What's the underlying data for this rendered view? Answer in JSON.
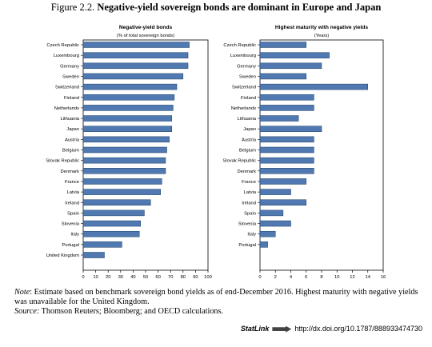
{
  "figure": {
    "label": "Figure 2.2.",
    "title": "Negative-yield sovereign bonds are dominant in Europe and Japan"
  },
  "chart_data": [
    {
      "type": "bar",
      "orientation": "horizontal",
      "title": "Negative-yield bonds",
      "subtitle": "(% of total sovereign bonds)",
      "categories": [
        "Czech Republic",
        "Luxembourg",
        "Germany",
        "Sweden",
        "Switzerland",
        "Finland",
        "Netherlands",
        "Lithuania",
        "Japan",
        "Austria",
        "Belgium",
        "Slovak Republic",
        "Denmark",
        "France",
        "Latvia",
        "Ireland",
        "Spain",
        "Slovenia",
        "Italy",
        "Portugal",
        "United Kingdom"
      ],
      "values": [
        85,
        84,
        84,
        80,
        75,
        73,
        72,
        71,
        71,
        69,
        67,
        66,
        66,
        63,
        62,
        54,
        49,
        46,
        45,
        31,
        17
      ],
      "xlim": [
        0,
        100
      ],
      "xticks": [
        0,
        10,
        20,
        30,
        40,
        50,
        60,
        70,
        80,
        90,
        100
      ],
      "bar_color": "#4f79b0",
      "grid": false
    },
    {
      "type": "bar",
      "orientation": "horizontal",
      "title": "Highest maturity with negative yields",
      "subtitle": "(Years)",
      "categories": [
        "Czech Republic",
        "Luxembourg",
        "Germany",
        "Sweden",
        "Switzerland",
        "Finland",
        "Netherlands",
        "Lithuania",
        "Japan",
        "Austria",
        "Belgium",
        "Slovak Republic",
        "Denmark",
        "France",
        "Latvia",
        "Ireland",
        "Spain",
        "Slovenia",
        "Italy",
        "Portugal"
      ],
      "values": [
        6,
        9,
        8,
        6,
        14,
        7,
        7,
        5,
        8,
        7,
        7,
        7,
        7,
        6,
        4,
        6,
        3,
        4,
        2,
        1
      ],
      "xlim": [
        0,
        16
      ],
      "xticks": [
        0,
        2,
        4,
        6,
        8,
        10,
        12,
        14,
        16
      ],
      "bar_color": "#4f79b0",
      "grid": false
    }
  ],
  "notes": {
    "note_label": "Note",
    "note_text": ": Estimate based on benchmark sovereign bond yields as of end-December 2016. Highest maturity with negative yields was unavailable for the United Kingdom.",
    "source_label": "Source:",
    "source_text": " Thomson Reuters; Bloomberg; and OECD calculations."
  },
  "statlink": {
    "brand": "StatLink",
    "url": "http://dx.doi.org/10.1787/888933474730"
  }
}
